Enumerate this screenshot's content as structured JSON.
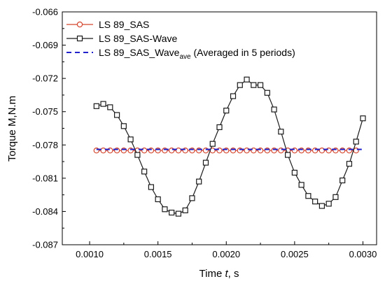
{
  "chart_data": {
    "type": "line",
    "xlabel_prefix": "Time ",
    "xlabel_var": "t",
    "xlabel_suffix": ", s",
    "ylabel": "Torque M,N.m",
    "xlim": [
      0.0008,
      0.0031
    ],
    "ylim": [
      -0.087,
      -0.066
    ],
    "xticks": [
      "0.0010",
      "0.0015",
      "0.0020",
      "0.0025",
      "0.0030"
    ],
    "xtick_values": [
      0.001,
      0.0015,
      0.002,
      0.0025,
      0.003
    ],
    "yticks": [
      "-0.066",
      "-0.069",
      "-0.072",
      "-0.075",
      "-0.078",
      "-0.081",
      "-0.084",
      "-0.087"
    ],
    "ytick_values": [
      -0.066,
      -0.069,
      -0.072,
      -0.075,
      -0.078,
      -0.081,
      -0.084,
      -0.087
    ],
    "grid": false,
    "legend_position": "top-left",
    "series": [
      {
        "name": "LS 89_SAS",
        "color": "#d4462d",
        "marker": "circle",
        "line": "solid",
        "x": [
          0.00105,
          0.0011,
          0.00115,
          0.0012,
          0.00125,
          0.0013,
          0.00135,
          0.0014,
          0.00145,
          0.0015,
          0.00155,
          0.0016,
          0.00165,
          0.0017,
          0.00175,
          0.0018,
          0.00185,
          0.0019,
          0.00195,
          0.002,
          0.00205,
          0.0021,
          0.00215,
          0.0022,
          0.00225,
          0.0023,
          0.00235,
          0.0024,
          0.00245,
          0.0025,
          0.00255,
          0.0026,
          0.00265,
          0.0027,
          0.00275,
          0.0028,
          0.00285,
          0.0029,
          0.00295
        ],
        "y": [
          -0.0785,
          -0.0785,
          -0.0785,
          -0.0785,
          -0.0785,
          -0.0785,
          -0.0785,
          -0.0785,
          -0.0785,
          -0.0785,
          -0.0785,
          -0.0785,
          -0.0785,
          -0.0785,
          -0.0785,
          -0.0785,
          -0.0785,
          -0.0785,
          -0.0785,
          -0.0785,
          -0.0785,
          -0.0785,
          -0.0785,
          -0.0785,
          -0.0785,
          -0.0785,
          -0.0785,
          -0.0785,
          -0.0785,
          -0.0785,
          -0.0785,
          -0.0785,
          -0.0785,
          -0.0785,
          -0.0785,
          -0.0785,
          -0.0785,
          -0.0785,
          -0.0785
        ]
      },
      {
        "name": "LS 89_SAS-Wave",
        "color": "#1a1a1a",
        "marker": "square",
        "line": "solid",
        "x": [
          0.00105,
          0.0011,
          0.00115,
          0.0012,
          0.00125,
          0.0013,
          0.00135,
          0.0014,
          0.00145,
          0.0015,
          0.00155,
          0.0016,
          0.00165,
          0.0017,
          0.00175,
          0.0018,
          0.00185,
          0.0019,
          0.00195,
          0.002,
          0.00205,
          0.0021,
          0.00215,
          0.0022,
          0.00225,
          0.0023,
          0.00235,
          0.0024,
          0.00245,
          0.0025,
          0.00255,
          0.0026,
          0.00265,
          0.0027,
          0.00275,
          0.0028,
          0.00285,
          0.0029,
          0.00295,
          0.003
        ],
        "y": [
          -0.0745,
          -0.0743,
          -0.0746,
          -0.0753,
          -0.0763,
          -0.0775,
          -0.0789,
          -0.0804,
          -0.0818,
          -0.0829,
          -0.0838,
          -0.0841,
          -0.0842,
          -0.0839,
          -0.0828,
          -0.0813,
          -0.0796,
          -0.0779,
          -0.0764,
          -0.0749,
          -0.0736,
          -0.0726,
          -0.0721,
          -0.0726,
          -0.0726,
          -0.0733,
          -0.0748,
          -0.0768,
          -0.0789,
          -0.0805,
          -0.0816,
          -0.0826,
          -0.0831,
          -0.0835,
          -0.0833,
          -0.0827,
          -0.0812,
          -0.0797,
          -0.0777,
          -0.0756
        ]
      },
      {
        "name": "LS 89_SAS_Wave",
        "name_subscript": "ave",
        "name_suffix": " (Averaged in 5 periods)",
        "color": "#2222cc",
        "marker": "none",
        "line": "dashed",
        "x": [
          0.00105,
          0.003
        ],
        "y": [
          -0.0784,
          -0.0784
        ]
      }
    ]
  }
}
